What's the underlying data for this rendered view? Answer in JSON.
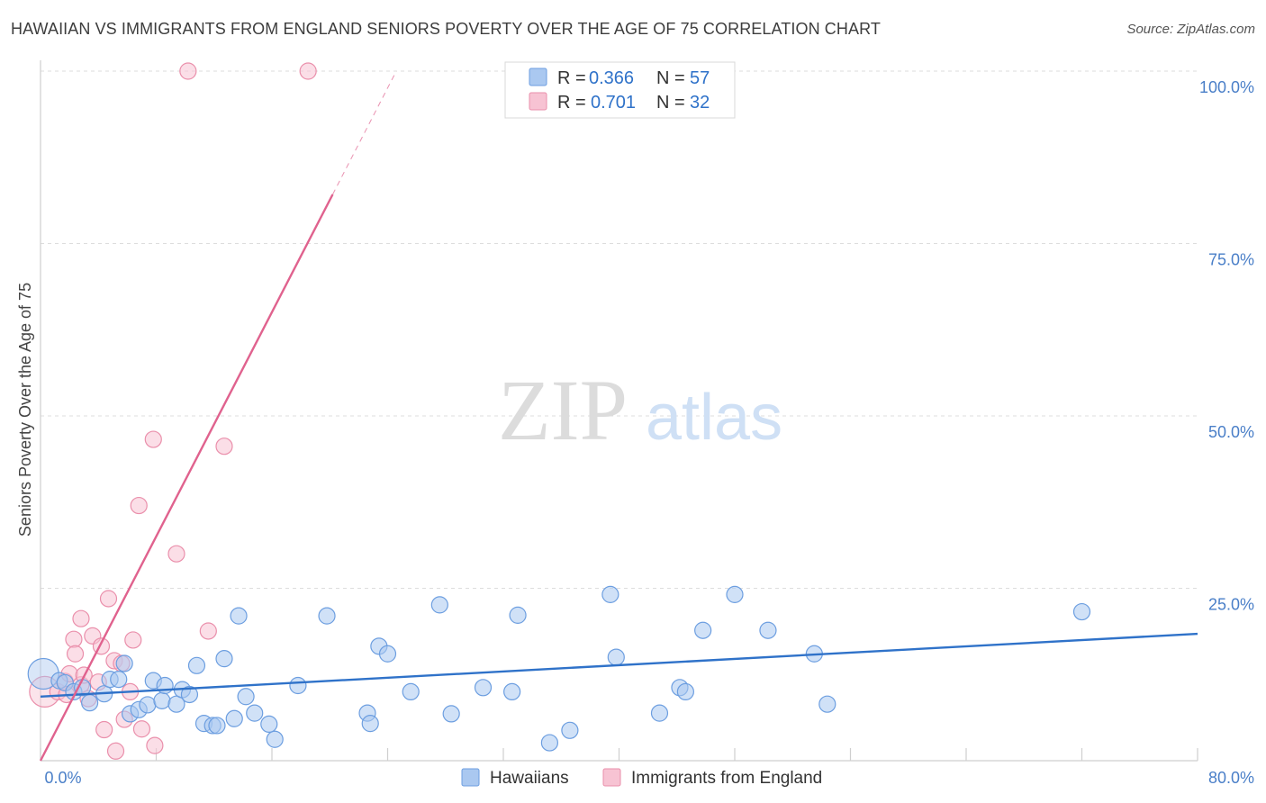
{
  "header": {
    "title": "HAWAIIAN VS IMMIGRANTS FROM ENGLAND SENIORS POVERTY OVER THE AGE OF 75 CORRELATION CHART",
    "source": "Source: ZipAtlas.com"
  },
  "watermark": {
    "zip": "ZIP",
    "atlas": "atlas"
  },
  "colors": {
    "blue_fill": "#aac8f0",
    "blue_stroke": "#6c9ee0",
    "blue_line": "#2f72c9",
    "pink_fill": "#f7c3d3",
    "pink_stroke": "#ea8fab",
    "pink_line": "#e0628e",
    "grid": "#dddddd",
    "tick_text": "#4a7fc8"
  },
  "chart_data": {
    "type": "scatter",
    "title": "HAWAIIAN VS IMMIGRANTS FROM ENGLAND SENIORS POVERTY OVER THE AGE OF 75 CORRELATION CHART",
    "xlabel": "",
    "ylabel": "Seniors Poverty Over the Age of 75",
    "xlim": [
      0,
      80
    ],
    "ylim": [
      0,
      100
    ],
    "x_tick_labels": [
      {
        "value": 0,
        "label": "0.0%"
      },
      {
        "value": 80,
        "label": "80.0%"
      }
    ],
    "y_tick_labels": [
      {
        "value": 25,
        "label": "25.0%"
      },
      {
        "value": 50,
        "label": "50.0%"
      },
      {
        "value": 75,
        "label": "75.0%"
      },
      {
        "value": 100,
        "label": "100.0%"
      }
    ],
    "legend_top": [
      {
        "r_label": "R =",
        "r_value": "0.366",
        "n_label": "N =",
        "n_value": "57"
      },
      {
        "r_label": "R =",
        "r_value": "0.701",
        "n_label": "N =",
        "n_value": "32"
      }
    ],
    "series": [
      {
        "name": "Hawaiians",
        "color": "#aac8f0",
        "trend": {
          "x0": 0,
          "y0": 9.3,
          "x1": 80,
          "y1": 18.4,
          "solid_to": 80
        },
        "points": [
          {
            "x": 0.2,
            "y": 12.6,
            "big": true
          },
          {
            "x": 1.3,
            "y": 11.6
          },
          {
            "x": 1.7,
            "y": 11.3
          },
          {
            "x": 2.3,
            "y": 10.0
          },
          {
            "x": 2.9,
            "y": 10.6
          },
          {
            "x": 3.4,
            "y": 8.4
          },
          {
            "x": 4.4,
            "y": 9.7
          },
          {
            "x": 4.8,
            "y": 11.8
          },
          {
            "x": 5.4,
            "y": 11.8
          },
          {
            "x": 5.8,
            "y": 14.1
          },
          {
            "x": 6.2,
            "y": 6.8
          },
          {
            "x": 6.8,
            "y": 7.4
          },
          {
            "x": 7.4,
            "y": 8.1
          },
          {
            "x": 7.8,
            "y": 11.6
          },
          {
            "x": 8.4,
            "y": 8.7
          },
          {
            "x": 8.6,
            "y": 10.9
          },
          {
            "x": 9.4,
            "y": 8.2
          },
          {
            "x": 9.8,
            "y": 10.3
          },
          {
            "x": 10.3,
            "y": 9.6
          },
          {
            "x": 10.8,
            "y": 13.8
          },
          {
            "x": 11.3,
            "y": 5.4
          },
          {
            "x": 11.9,
            "y": 5.1
          },
          {
            "x": 12.2,
            "y": 5.1
          },
          {
            "x": 12.7,
            "y": 14.8
          },
          {
            "x": 13.4,
            "y": 6.1
          },
          {
            "x": 13.7,
            "y": 21.0
          },
          {
            "x": 14.2,
            "y": 9.3
          },
          {
            "x": 14.8,
            "y": 6.9
          },
          {
            "x": 15.8,
            "y": 5.3
          },
          {
            "x": 16.2,
            "y": 3.1
          },
          {
            "x": 17.8,
            "y": 10.9
          },
          {
            "x": 19.8,
            "y": 21.0
          },
          {
            "x": 22.6,
            "y": 6.9
          },
          {
            "x": 22.8,
            "y": 5.4
          },
          {
            "x": 23.4,
            "y": 16.6
          },
          {
            "x": 24.0,
            "y": 15.5
          },
          {
            "x": 25.6,
            "y": 10.0
          },
          {
            "x": 27.6,
            "y": 22.6
          },
          {
            "x": 28.4,
            "y": 6.8
          },
          {
            "x": 30.6,
            "y": 10.6
          },
          {
            "x": 32.6,
            "y": 10.0
          },
          {
            "x": 33.0,
            "y": 21.1
          },
          {
            "x": 35.2,
            "y": 2.6
          },
          {
            "x": 36.6,
            "y": 4.4
          },
          {
            "x": 39.4,
            "y": 24.1
          },
          {
            "x": 39.8,
            "y": 15.0
          },
          {
            "x": 42.8,
            "y": 6.9
          },
          {
            "x": 44.2,
            "y": 10.6
          },
          {
            "x": 44.6,
            "y": 10.0
          },
          {
            "x": 45.8,
            "y": 18.9
          },
          {
            "x": 48.0,
            "y": 24.1
          },
          {
            "x": 50.3,
            "y": 18.9
          },
          {
            "x": 53.5,
            "y": 15.5
          },
          {
            "x": 54.4,
            "y": 8.2
          },
          {
            "x": 72.0,
            "y": 21.6
          }
        ]
      },
      {
        "name": "Immigrants from England",
        "color": "#f7c3d3",
        "trend": {
          "x0": 0,
          "y0": 0,
          "x1": 24.6,
          "y1": 100,
          "solid_to": 20.2
        },
        "points": [
          {
            "x": 0.3,
            "y": 10.0,
            "big": true
          },
          {
            "x": 1.2,
            "y": 10.0
          },
          {
            "x": 1.7,
            "y": 11.5
          },
          {
            "x": 1.8,
            "y": 9.6
          },
          {
            "x": 2.0,
            "y": 12.6
          },
          {
            "x": 2.3,
            "y": 17.6
          },
          {
            "x": 2.4,
            "y": 15.5
          },
          {
            "x": 2.8,
            "y": 20.6
          },
          {
            "x": 2.8,
            "y": 11.0
          },
          {
            "x": 3.0,
            "y": 12.4
          },
          {
            "x": 3.3,
            "y": 9.0
          },
          {
            "x": 3.6,
            "y": 18.1
          },
          {
            "x": 4.0,
            "y": 11.4
          },
          {
            "x": 4.2,
            "y": 16.6
          },
          {
            "x": 4.4,
            "y": 4.5
          },
          {
            "x": 4.7,
            "y": 23.5
          },
          {
            "x": 5.1,
            "y": 14.5
          },
          {
            "x": 5.2,
            "y": 1.4
          },
          {
            "x": 5.6,
            "y": 14.1
          },
          {
            "x": 5.8,
            "y": 6.0
          },
          {
            "x": 6.2,
            "y": 10.0
          },
          {
            "x": 6.4,
            "y": 17.5
          },
          {
            "x": 6.8,
            "y": 37.0
          },
          {
            "x": 7.0,
            "y": 4.6
          },
          {
            "x": 7.8,
            "y": 46.6
          },
          {
            "x": 7.9,
            "y": 2.2
          },
          {
            "x": 9.4,
            "y": 30.0
          },
          {
            "x": 10.2,
            "y": 100.0
          },
          {
            "x": 11.6,
            "y": 18.8
          },
          {
            "x": 12.7,
            "y": 45.6
          },
          {
            "x": 18.5,
            "y": 100.0
          }
        ]
      }
    ]
  }
}
